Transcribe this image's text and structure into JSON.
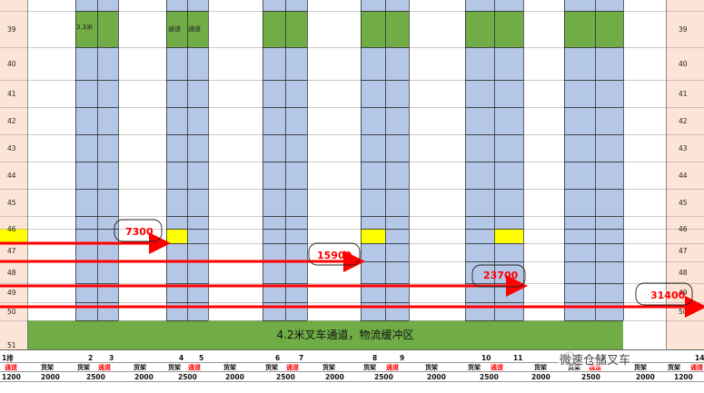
{
  "row_numbers": [
    "39",
    "40",
    "41",
    "42",
    "43",
    "44",
    "45",
    "46",
    "47",
    "48",
    "49",
    "50",
    "51"
  ],
  "aisle_label": "4.2米叉车通道，物流缓冲区",
  "height_note": "3.3米",
  "passage_notes": [
    "通道",
    "通道"
  ],
  "rack_numbers": [
    "1排",
    "2",
    "3",
    "4",
    "5",
    "6",
    "7",
    "8",
    "9",
    "10",
    "11",
    "12",
    "13",
    "14"
  ],
  "bottom_types": [
    "通道",
    "货架",
    "货架",
    "通道",
    "货架",
    "货架",
    "通道",
    "货架",
    "货架",
    "通道",
    "货架",
    "货架",
    "通道",
    "货架",
    "货架",
    "通道",
    "货架",
    "货架",
    "通道",
    "货架",
    "货架",
    "通道"
  ],
  "bottom_widths": [
    "1200",
    "2000",
    "2500",
    "2000",
    "2500",
    "2000",
    "2500",
    "2000",
    "2500",
    "2000",
    "2500",
    "2000",
    "2500",
    "2000",
    "1200"
  ],
  "distances": [
    "7300",
    "15900",
    "23700",
    "31400"
  ],
  "watermark": "微速仓储叉车",
  "colors": {
    "rack_blue": "#b4c7e7",
    "rack_green": "#70ad47",
    "header_peach": "#fce4d6",
    "aisle_green": "#70ad47",
    "highlight_yellow": "#ffff00",
    "arrow_red": "#ff0000",
    "grid_line": "#000000"
  }
}
